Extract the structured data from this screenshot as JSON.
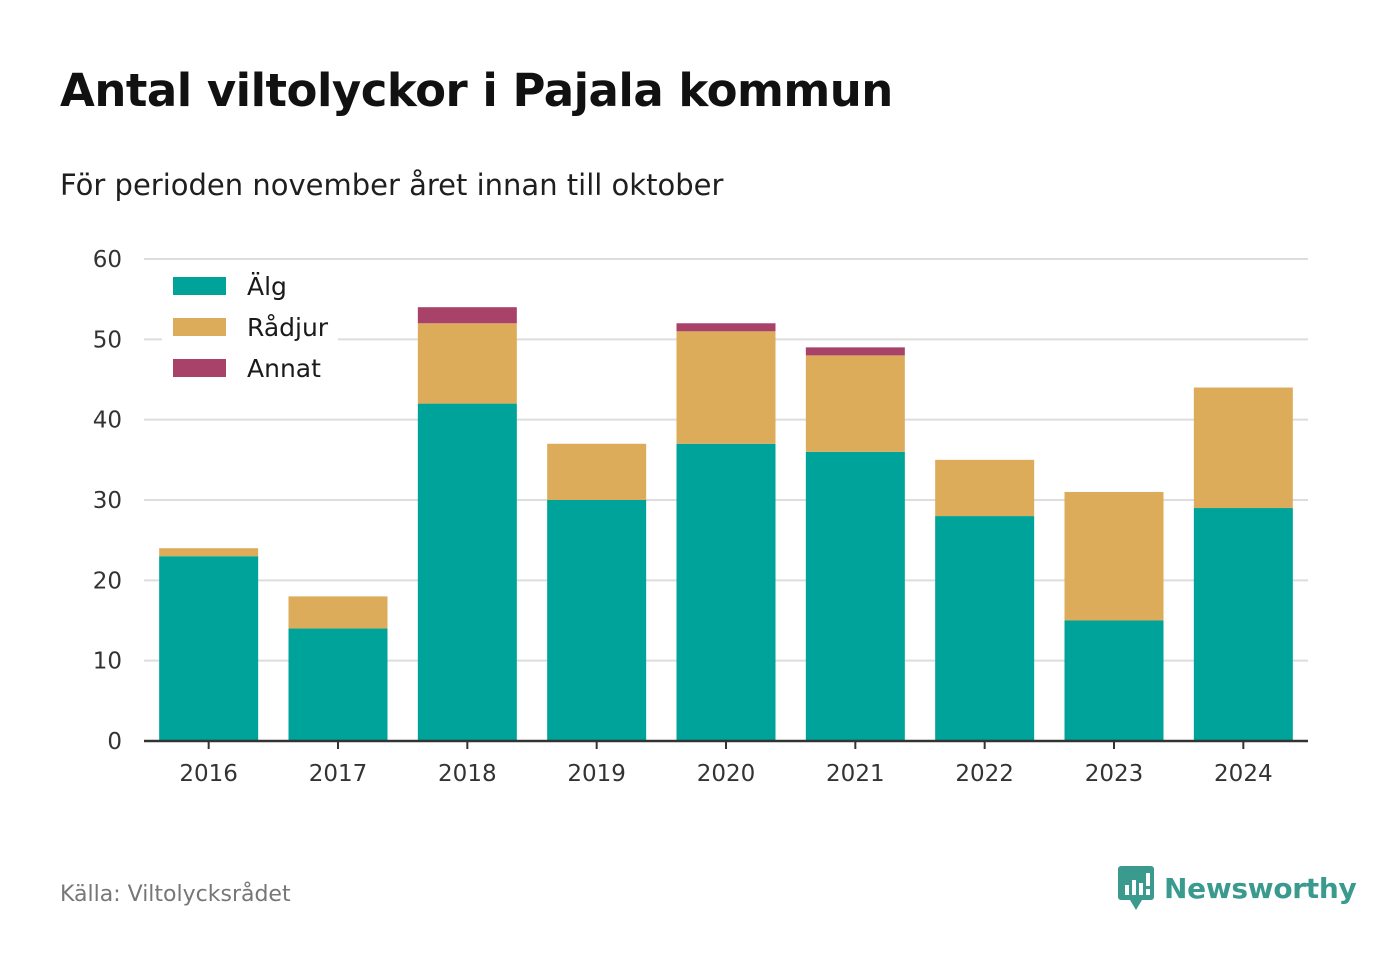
{
  "title": "Antal viltolyckor i Pajala kommun",
  "subtitle": "För perioden november året innan till oktober",
  "source": "Källa: Viltolycksrådet",
  "brand": {
    "name": "Newsworthy",
    "icon": "newsworthy-logo-icon",
    "color": "#3a9a8e"
  },
  "chart_data": {
    "type": "bar",
    "stacked": true,
    "categories": [
      "2016",
      "2017",
      "2018",
      "2019",
      "2020",
      "2021",
      "2022",
      "2023",
      "2024"
    ],
    "series": [
      {
        "name": "Älg",
        "color": "#00a39a",
        "values": [
          23,
          14,
          42,
          30,
          37,
          36,
          28,
          15,
          29
        ]
      },
      {
        "name": "Rådjur",
        "color": "#dcac5a",
        "values": [
          1,
          4,
          10,
          7,
          14,
          12,
          7,
          16,
          15
        ]
      },
      {
        "name": "Annat",
        "color": "#a84268",
        "values": [
          0,
          0,
          2,
          0,
          1,
          1,
          0,
          0,
          0
        ]
      }
    ],
    "ylim": [
      0,
      60
    ],
    "yticks": [
      0,
      10,
      20,
      30,
      40,
      50,
      60
    ],
    "grid": true,
    "legend_position": "top-left"
  }
}
